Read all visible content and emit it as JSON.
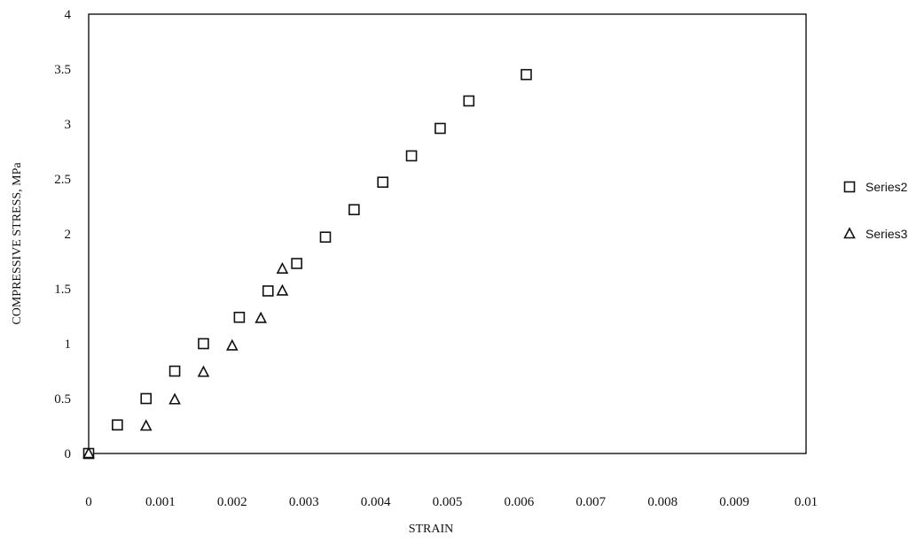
{
  "chart_data": {
    "type": "scatter",
    "title": "",
    "xlabel": "STRAIN",
    "ylabel": "COMPRESSIVE STRESS, MPa",
    "xlim": [
      0,
      0.01
    ],
    "ylim": [
      0,
      4
    ],
    "xticks": [
      "0",
      "0.001",
      "0.002",
      "0.003",
      "0.004",
      "0.005",
      "0.006",
      "0.007",
      "0.008",
      "0.009",
      "0.01"
    ],
    "yticks": [
      "0",
      "0.5",
      "1",
      "1.5",
      "2",
      "2.5",
      "3",
      "3.5",
      "4"
    ],
    "grid": false,
    "legend_position": "right",
    "series": [
      {
        "name": "Series2",
        "marker": "square",
        "x": [
          0,
          0.0004,
          0.0008,
          0.0012,
          0.0016,
          0.0021,
          0.0025,
          0.0029,
          0.0033,
          0.0037,
          0.0041,
          0.0045,
          0.0049,
          0.0053,
          0.0061
        ],
        "y": [
          0,
          0.26,
          0.5,
          0.75,
          1.0,
          1.24,
          1.48,
          1.73,
          1.97,
          2.22,
          2.47,
          2.71,
          2.96,
          3.21,
          3.45
        ]
      },
      {
        "name": "Series3",
        "marker": "triangle",
        "x": [
          0,
          0.0008,
          0.0012,
          0.0016,
          0.002,
          0.0024,
          0.0027,
          0.0027
        ],
        "y": [
          0,
          0.25,
          0.49,
          0.74,
          0.98,
          1.23,
          1.48,
          1.68
        ]
      }
    ]
  }
}
